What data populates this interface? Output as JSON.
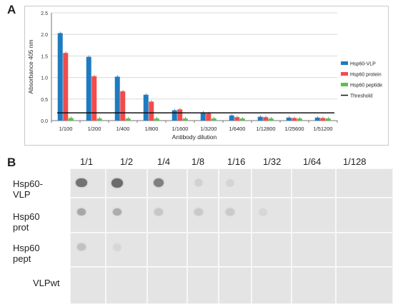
{
  "panels": {
    "a": "A",
    "b": "B"
  },
  "chart_data": {
    "type": "bar",
    "title": "",
    "xlabel": "Antibody dilution",
    "ylabel": "Absorbance 405 nm",
    "ylim": [
      0,
      2.5
    ],
    "yticks": [
      "0.0",
      "0.5",
      "1.0",
      "1.5",
      "2.0",
      "2.5"
    ],
    "grid": true,
    "legend_position": "right",
    "categories": [
      "1/100",
      "1/200",
      "1/400",
      "1/800",
      "1/1600",
      "1/3200",
      "1/6400",
      "1/12800",
      "1/25600",
      "1/51200"
    ],
    "series": [
      {
        "name": "Hsp60-VLP",
        "color": "#1f7bc1",
        "values": [
          2.03,
          1.48,
          1.02,
          0.6,
          0.24,
          0.19,
          0.12,
          0.09,
          0.07,
          0.07
        ]
      },
      {
        "name": "Hsp60 protein",
        "color": "#f24b4b",
        "values": [
          1.57,
          1.03,
          0.68,
          0.44,
          0.26,
          0.17,
          0.08,
          0.08,
          0.06,
          0.06
        ]
      },
      {
        "name": "Hsp60 peptide",
        "color": "#5cc04e",
        "values": [
          0.06,
          0.05,
          0.05,
          0.05,
          0.05,
          0.05,
          0.05,
          0.05,
          0.05,
          0.05
        ]
      }
    ],
    "threshold": {
      "name": "Threshold",
      "value": 0.18,
      "color": "#111111"
    }
  },
  "blot": {
    "dilutions": [
      "1/1",
      "1/2",
      "1/4",
      "1/8",
      "1/16",
      "1/32",
      "1/64",
      "1/128"
    ],
    "rows": [
      "Hsp60-VLP",
      "Hsp60 prot",
      "Hsp60 pept",
      "VLPwt"
    ],
    "intensity": [
      [
        0.85,
        0.9,
        0.75,
        0.12,
        0.1,
        0,
        0,
        0
      ],
      [
        0.45,
        0.4,
        0.2,
        0.18,
        0.18,
        0.08,
        0,
        0
      ],
      [
        0.25,
        0.08,
        0,
        0,
        0,
        0,
        0,
        0
      ],
      [
        0,
        0,
        0,
        0,
        0,
        0,
        0,
        0
      ]
    ]
  }
}
